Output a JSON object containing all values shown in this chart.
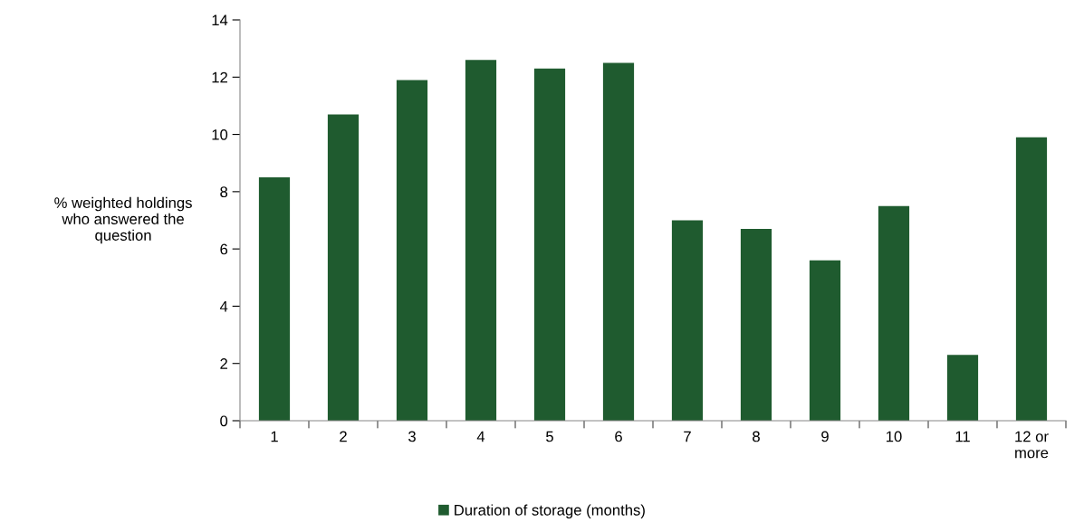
{
  "chart_data": {
    "type": "bar",
    "ylabel": "% weighted holdings\nwho answered the\nquestion",
    "categories": [
      "1",
      "2",
      "3",
      "4",
      "5",
      "6",
      "7",
      "8",
      "9",
      "10",
      "11",
      "12 or\nmore"
    ],
    "series": [
      {
        "name": "Duration of storage (months)",
        "color": "#1f5b2f",
        "values": [
          8.5,
          10.7,
          11.9,
          12.6,
          12.3,
          12.5,
          7.0,
          6.7,
          5.6,
          7.5,
          2.3,
          9.9
        ]
      }
    ],
    "ylim": [
      0,
      14
    ],
    "yticks": [
      0,
      2,
      4,
      6,
      8,
      10,
      12,
      14
    ],
    "grid": false,
    "legend": "bottom"
  }
}
